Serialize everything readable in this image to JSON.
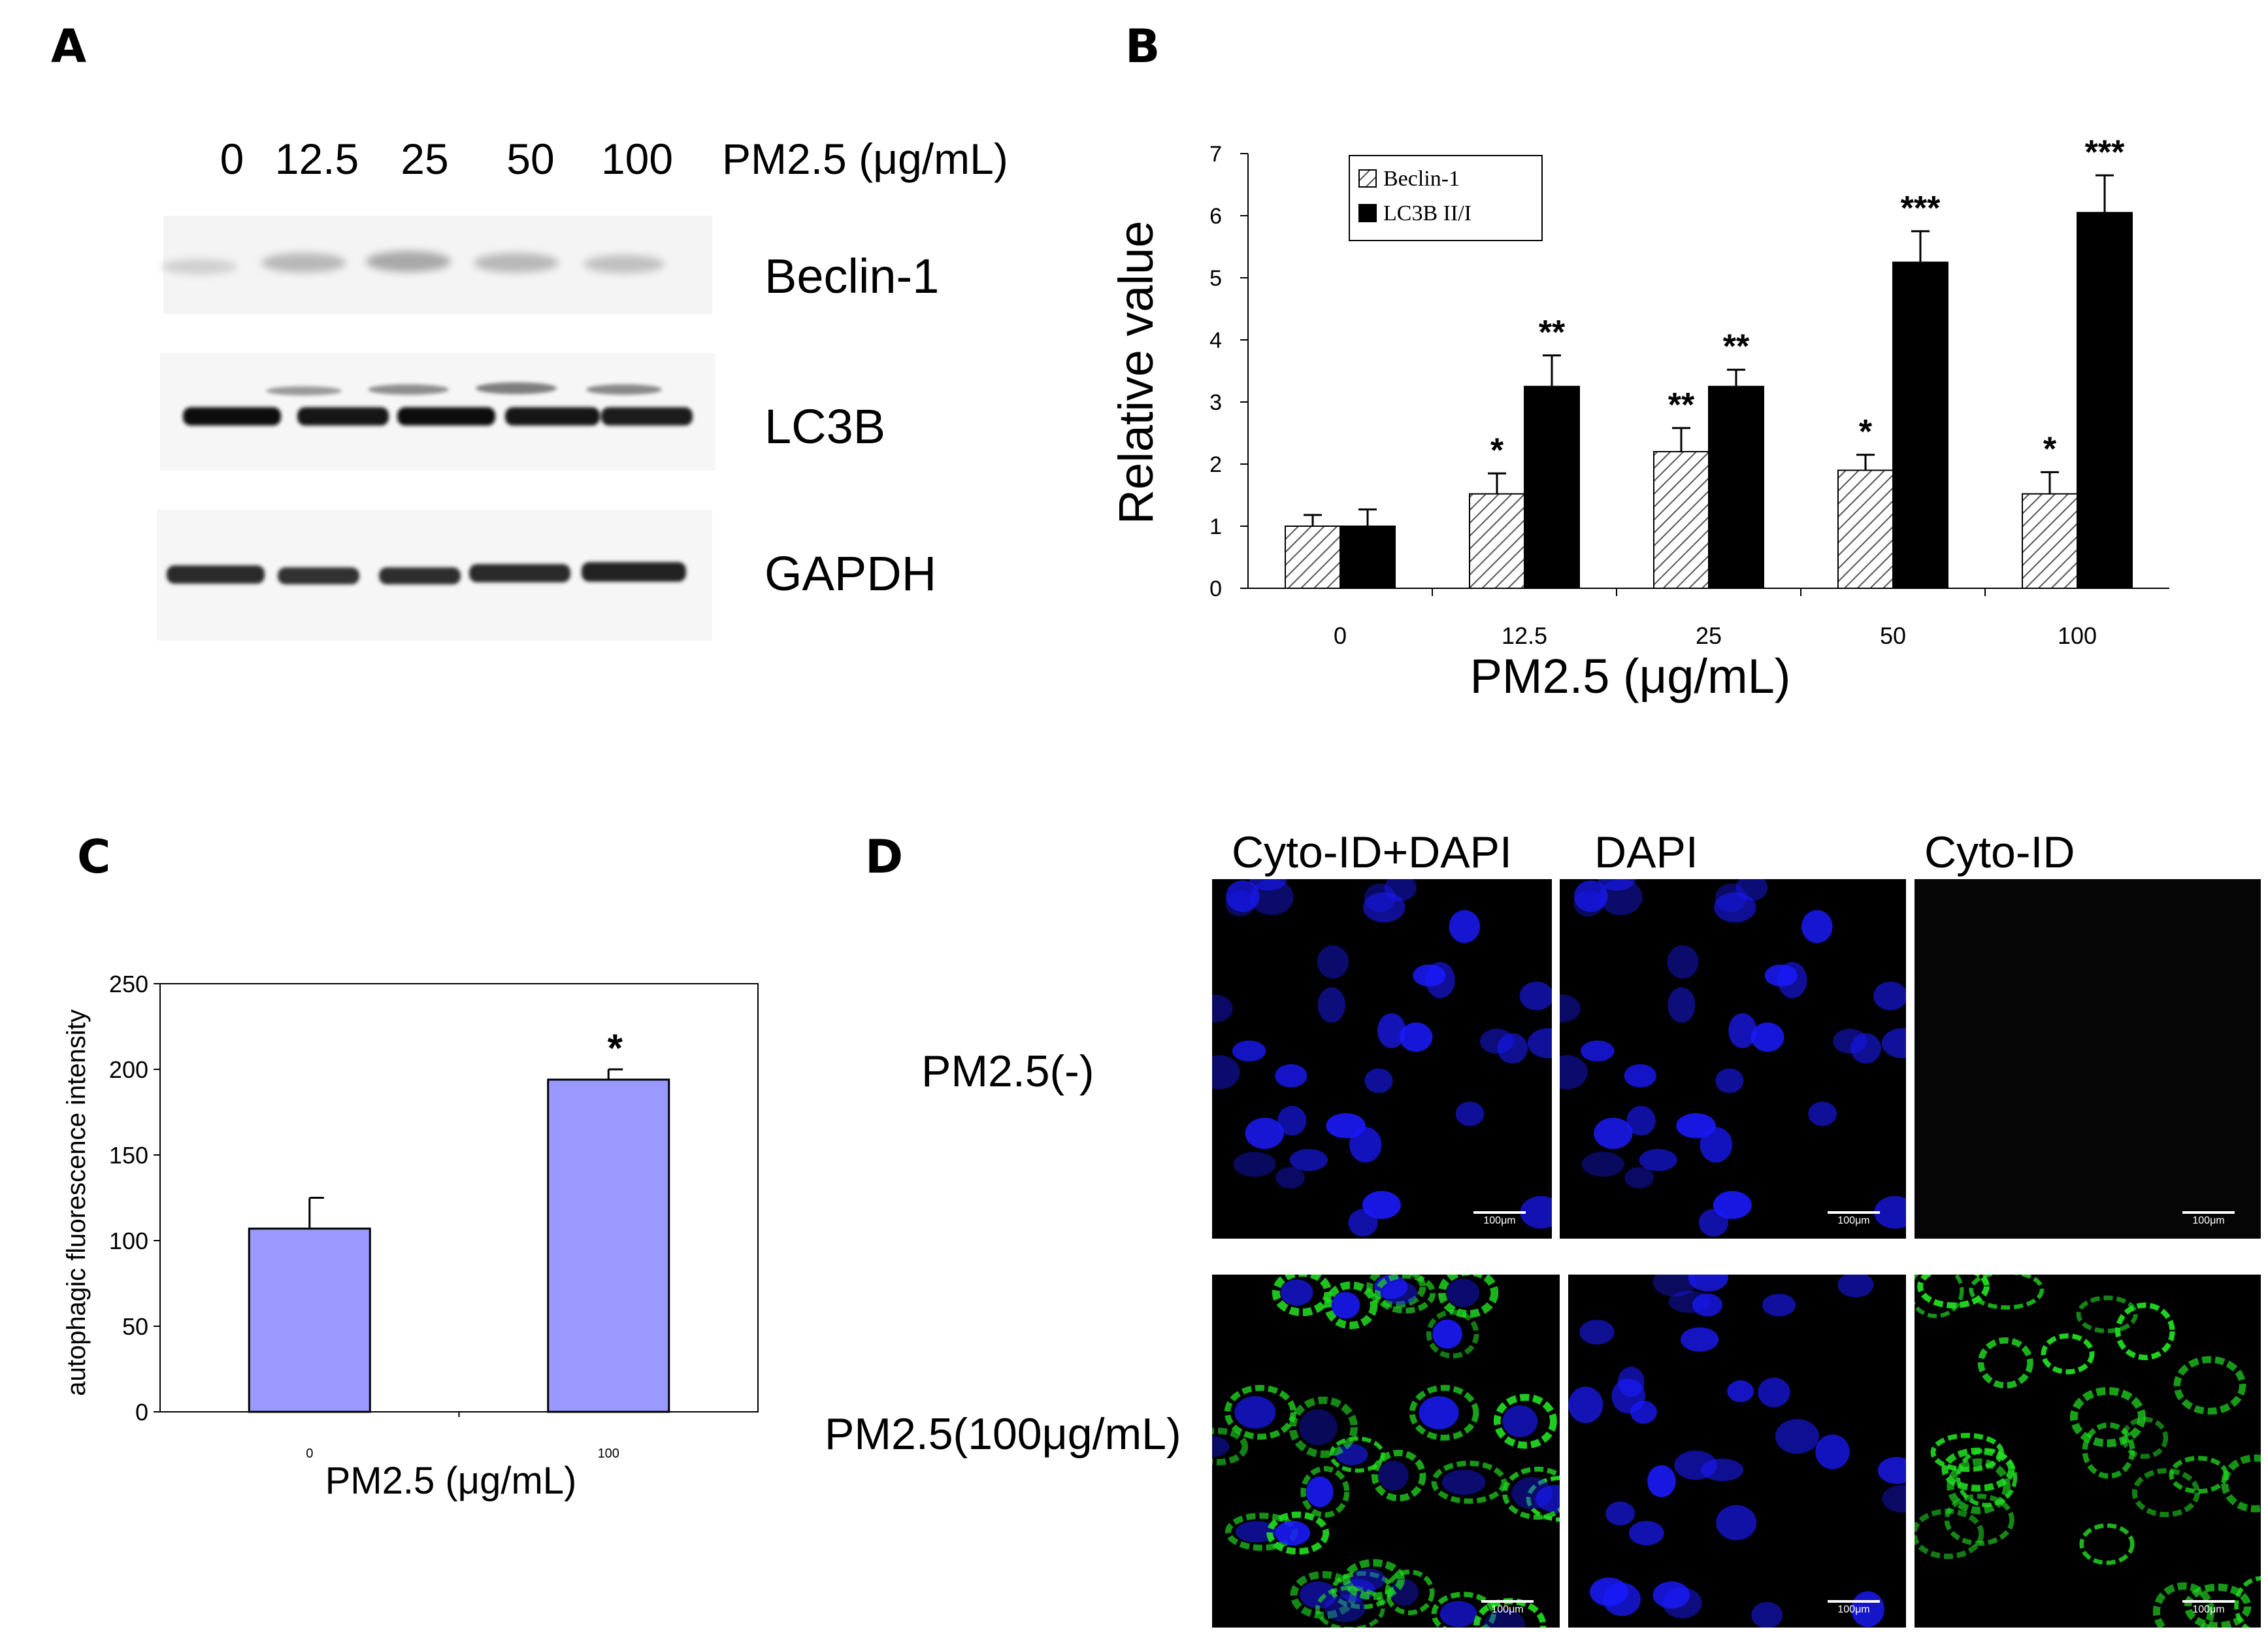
{
  "panels": {
    "a": "A",
    "b": "B",
    "c": "C",
    "d": "D"
  },
  "blot": {
    "lanes": [
      "0",
      "12.5",
      "25",
      "50",
      "100"
    ],
    "treatment_label": "PM2.5 (μg/mL)",
    "rows": [
      "Beclin-1",
      "LC3B",
      "GAPDH"
    ]
  },
  "chart_data": [
    {
      "type": "bar",
      "panel": "B",
      "categories": [
        "0",
        "12.5",
        "25",
        "50",
        "100"
      ],
      "series": [
        {
          "name": "Beclin-1",
          "values": [
            1.0,
            1.52,
            2.2,
            1.9,
            1.52
          ],
          "errors": [
            0.18,
            0.33,
            0.38,
            0.25,
            0.35
          ],
          "significance": [
            "",
            "*",
            "**",
            "*",
            "*"
          ],
          "color": "#ffffff",
          "pattern": "diagonal-hatch"
        },
        {
          "name": "LC3B II/I",
          "values": [
            1.0,
            3.25,
            3.25,
            5.25,
            6.05
          ],
          "errors": [
            0.27,
            0.5,
            0.27,
            0.5,
            0.6
          ],
          "significance": [
            "",
            "**",
            "**",
            "***",
            "***"
          ],
          "color": "#000000"
        }
      ],
      "xlabel": "PM2.5 (μg/mL)",
      "ylabel": "Relative value",
      "ylim": [
        0,
        7
      ],
      "yticks": [
        0,
        1,
        2,
        3,
        4,
        5,
        6,
        7
      ],
      "legend_position": "top-left",
      "grid": false
    },
    {
      "type": "bar",
      "panel": "C",
      "categories": [
        "0",
        "100"
      ],
      "series": [
        {
          "values": [
            107,
            194
          ],
          "errors": [
            18,
            6
          ],
          "significance": [
            "",
            "*"
          ],
          "color": "#9999ff"
        }
      ],
      "xlabel": "PM2.5 (μg/mL)",
      "ylabel": "autophagic fluorescence intensity",
      "ylim": [
        0,
        250
      ],
      "yticks": [
        0,
        50,
        100,
        150,
        200,
        250
      ],
      "grid": false
    }
  ],
  "microscopy": {
    "columns": [
      "Cyto-ID+DAPI",
      "DAPI",
      "Cyto-ID"
    ],
    "rows": [
      "PM2.5(-)",
      "PM2.5(100μg/mL)"
    ],
    "scale_bar": "100μm",
    "colors": {
      "nuclei": "#1a1aff",
      "cyto_id": "#22dd22",
      "background": "#000000"
    }
  }
}
